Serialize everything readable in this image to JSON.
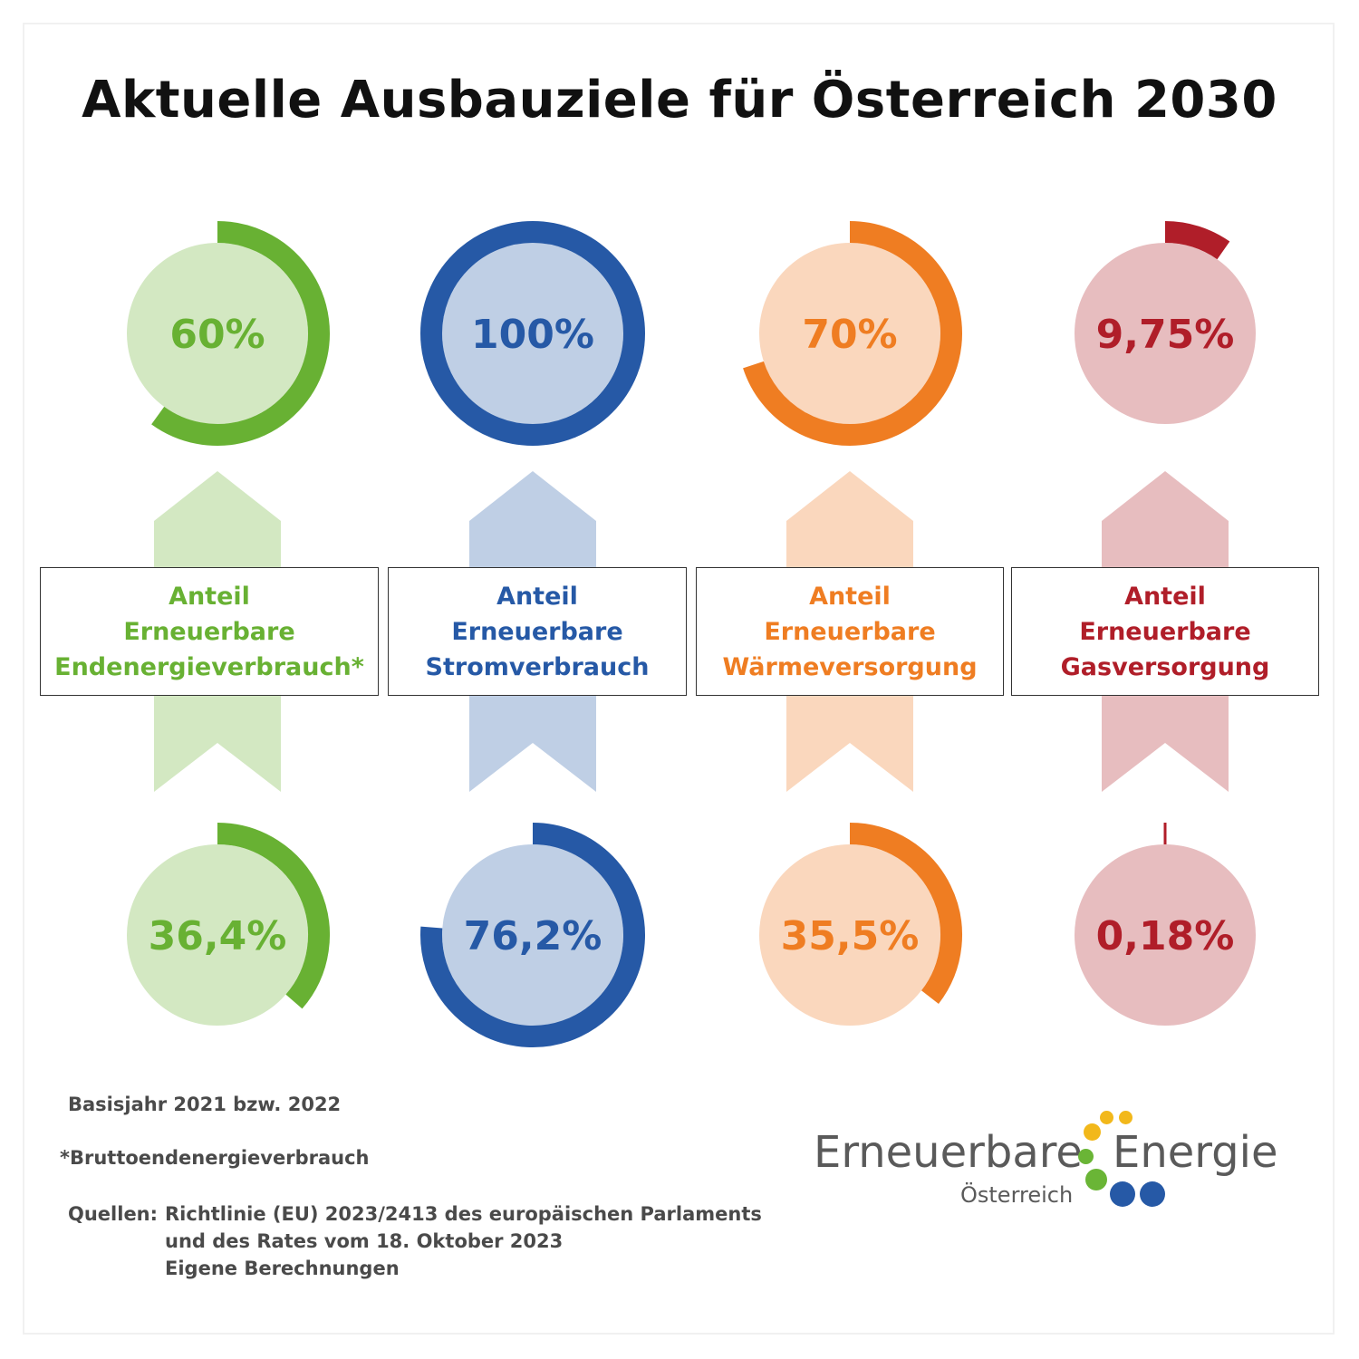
{
  "title": "Aktuelle Ausbauziele für Österreich 2030",
  "chart_data": {
    "type": "radial-progress",
    "title": "Aktuelle Ausbauziele für Österreich 2030",
    "max": 100,
    "categories": [
      {
        "label_lines": [
          "Anteil",
          "Erneuerbare",
          "Endenergieverbrauch*"
        ],
        "target_2030": 60,
        "target_label": "60%",
        "current": 36.4,
        "current_label": "36,4%",
        "color": "#68b133",
        "light": "#d3e8c2"
      },
      {
        "label_lines": [
          "Anteil",
          "Erneuerbare",
          "Stromverbrauch"
        ],
        "target_2030": 100,
        "target_label": "100%",
        "current": 76.2,
        "current_label": "76,2%",
        "color": "#2659a6",
        "light": "#bfcfe5"
      },
      {
        "label_lines": [
          "Anteil",
          "Erneuerbare",
          "Wärmeversorgung"
        ],
        "target_2030": 70,
        "target_label": "70%",
        "current": 35.5,
        "current_label": "35,5%",
        "color": "#ef7d22",
        "light": "#fad7bd"
      },
      {
        "label_lines": [
          "Anteil",
          "Erneuerbare",
          "Gasversorgung"
        ],
        "target_2030": 9.75,
        "target_label": "9,75%",
        "current": 0.18,
        "current_label": "0,18%",
        "color": "#b01e29",
        "light": "#e7bdbf"
      }
    ]
  },
  "footnotes": {
    "base_year": "Basisjahr 2021 bzw. 2022",
    "asterisk": "*Bruttoendenergieverbrauch",
    "sources_label": "Quellen:",
    "sources_lines": [
      "Richtlinie (EU) 2023/2413 des europäischen Parlaments",
      "und des Rates vom 18. Oktober 2023",
      "Eigene Berechnungen"
    ]
  },
  "logo": {
    "word1": "Erneuerbare",
    "word2": "Energie",
    "word3": "Österreich",
    "dot_colors": [
      "#f2b81b",
      "#6ab536",
      "#2659a6"
    ]
  }
}
